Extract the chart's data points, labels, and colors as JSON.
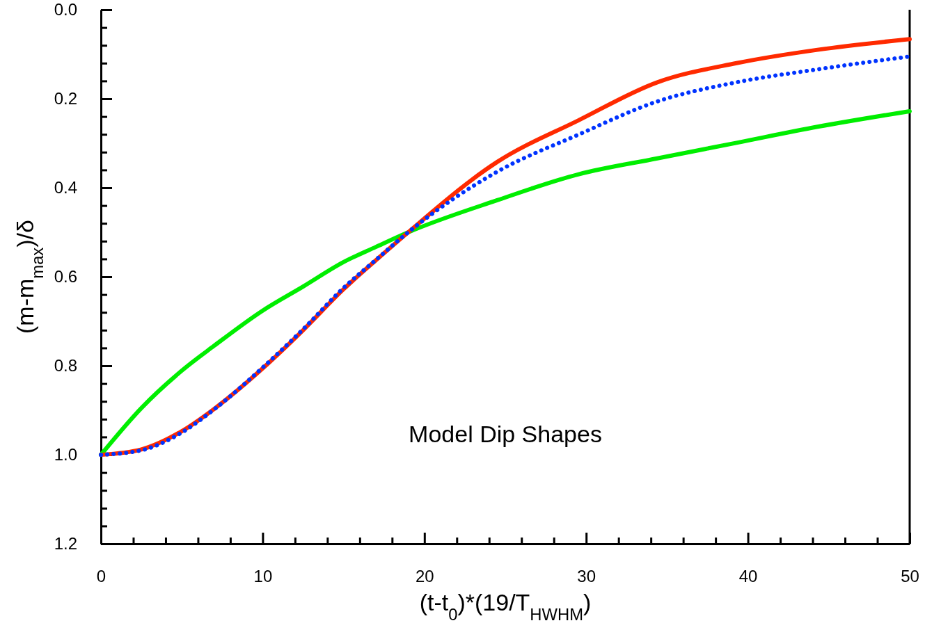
{
  "chart_data": {
    "type": "line",
    "xlabel": "(t-t$_{0}$)*(19/T$_{HWHM}$)",
    "ylabel": "(m-m$_{max}$)/δ",
    "annotations": [
      "Model Dip Shapes"
    ],
    "xlim": [
      0,
      50
    ],
    "ylim": [
      1.2,
      0.0
    ],
    "xticks": [
      0,
      {
        "value": 2,
        "label": null
      },
      {
        "value": 4,
        "label": null
      },
      {
        "value": 6,
        "label": null
      },
      {
        "value": 8,
        "label": null
      },
      10,
      {
        "value": 12,
        "label": null
      },
      {
        "value": 14,
        "label": null
      },
      {
        "value": 16,
        "label": null
      },
      {
        "value": 18,
        "label": null
      },
      20,
      {
        "value": 22,
        "label": null
      },
      {
        "value": 24,
        "label": null
      },
      {
        "value": 26,
        "label": null
      },
      {
        "value": 28,
        "label": null
      },
      30,
      {
        "value": 32,
        "label": null
      },
      {
        "value": 34,
        "label": null
      },
      {
        "value": 36,
        "label": null
      },
      {
        "value": 38,
        "label": null
      },
      40,
      {
        "value": 42,
        "label": null
      },
      {
        "value": 44,
        "label": null
      },
      {
        "value": 46,
        "label": null
      },
      {
        "value": 48,
        "label": null
      },
      50
    ],
    "yticks": [
      {
        "value": 0,
        "label": "0.0"
      },
      {
        "value": 0.04,
        "label": null
      },
      {
        "value": 0.08,
        "label": null
      },
      {
        "value": 0.12,
        "label": null
      },
      {
        "value": 0.16,
        "label": null
      },
      0.2,
      {
        "value": 0.24,
        "label": null
      },
      {
        "value": 0.28,
        "label": null
      },
      {
        "value": 0.32,
        "label": null
      },
      {
        "value": 0.36,
        "label": null
      },
      0.4,
      {
        "value": 0.44,
        "label": null
      },
      {
        "value": 0.48,
        "label": null
      },
      {
        "value": 0.52,
        "label": null
      },
      {
        "value": 0.56,
        "label": null
      },
      0.6,
      {
        "value": 0.64,
        "label": null
      },
      {
        "value": 0.68,
        "label": null
      },
      {
        "value": 0.72,
        "label": null
      },
      {
        "value": 0.76,
        "label": null
      },
      0.8,
      {
        "value": 0.84,
        "label": null
      },
      {
        "value": 0.88,
        "label": null
      },
      {
        "value": 0.92,
        "label": null
      },
      {
        "value": 0.96,
        "label": null
      },
      {
        "value": 1,
        "label": "1.0"
      },
      {
        "value": 1.04,
        "label": null
      },
      {
        "value": 1.08,
        "label": null
      },
      {
        "value": 1.12,
        "label": null
      },
      {
        "value": 1.16,
        "label": null
      },
      1.2
    ],
    "grid": false,
    "series": [
      {
        "color": "#00ee00",
        "line_style": "solid",
        "x": [
          0,
          2.5,
          5,
          7,
          10,
          12.5,
          15,
          17,
          19,
          24.5,
          29.5,
          34.4,
          39.3,
          44.3,
          50
        ],
        "values": [
          1.0,
          0.895,
          0.811,
          0.755,
          0.676,
          0.622,
          0.567,
          0.533,
          0.5,
          0.428,
          0.37,
          0.334,
          0.299,
          0.263,
          0.228
        ]
      },
      {
        "color": "#ff2a00",
        "line_style": "solid",
        "x": [
          0,
          2.5,
          5,
          7,
          10,
          12.5,
          15,
          17,
          19,
          24.5,
          29.5,
          34.4,
          39.3,
          44.3,
          50
        ],
        "values": [
          1.0,
          0.988,
          0.947,
          0.897,
          0.806,
          0.72,
          0.628,
          0.563,
          0.5,
          0.342,
          0.249,
          0.163,
          0.12,
          0.09,
          0.066
        ]
      },
      {
        "color": "#0033ff",
        "line_style": "dotted",
        "x": [
          0,
          2.5,
          5,
          7,
          10,
          12.5,
          15,
          17,
          19,
          24.5,
          29.5,
          34.4,
          39.3,
          44.3,
          50
        ],
        "values": [
          1.0,
          0.99,
          0.95,
          0.898,
          0.804,
          0.718,
          0.625,
          0.562,
          0.5,
          0.364,
          0.281,
          0.206,
          0.163,
          0.134,
          0.105
        ]
      }
    ]
  }
}
